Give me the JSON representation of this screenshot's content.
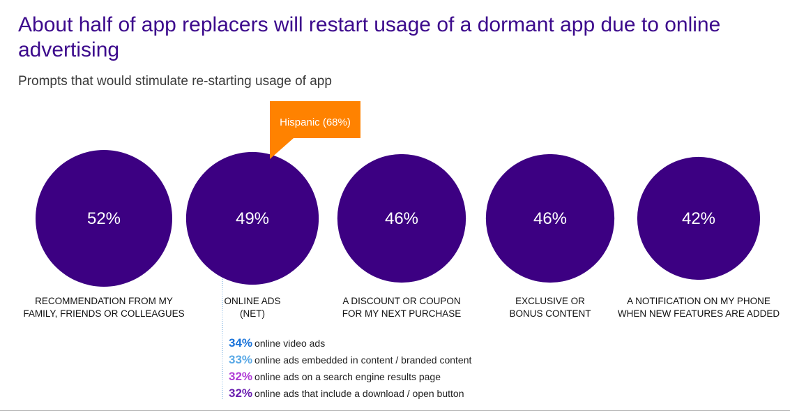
{
  "title": "About half of app replacers will restart usage of a dormant app due to online advertising",
  "subtitle": "Prompts that would stimulate re-starting usage of app",
  "colors": {
    "circle": "#3c0082",
    "callout": "#ff8200",
    "connector": "#6fa8dc"
  },
  "chart_data": {
    "type": "bubble",
    "title": "About half of app replacers will restart usage of a dormant app due to online advertising",
    "subtitle": "Prompts that would stimulate re-starting usage of app",
    "categories": [
      {
        "label_lines": [
          "RECOMMENDATION FROM MY",
          "FAMILY, FRIENDS OR COLLEAGUES"
        ],
        "value": 52,
        "value_label": "52%"
      },
      {
        "label_lines": [
          "ONLINE ADS",
          "(NET)"
        ],
        "value": 49,
        "value_label": "49%"
      },
      {
        "label_lines": [
          "A DISCOUNT OR COUPON",
          "FOR MY NEXT PURCHASE"
        ],
        "value": 46,
        "value_label": "46%"
      },
      {
        "label_lines": [
          "EXCLUSIVE OR",
          "BONUS CONTENT"
        ],
        "value": 46,
        "value_label": "46%"
      },
      {
        "label_lines": [
          "A NOTIFICATION ON MY PHONE",
          "WHEN NEW FEATURES ARE ADDED"
        ],
        "value": 42,
        "value_label": "42%"
      }
    ],
    "callout": {
      "category_index": 1,
      "text": "Hispanic (68%)",
      "value": 68
    },
    "breakdown": {
      "category_index": 1,
      "items": [
        {
          "value": 34,
          "pct_label": "34%",
          "text": "online video ads",
          "color": "#1a73d9"
        },
        {
          "value": 33,
          "pct_label": "33%",
          "text": "online ads embedded in content / branded content",
          "color": "#5aa9e6"
        },
        {
          "value": 32,
          "pct_label": "32%",
          "text": "online ads on a search engine results page",
          "color": "#b03cd6"
        },
        {
          "value": 32,
          "pct_label": "32%",
          "text": "online ads that include a download / open button",
          "color": "#6a1fb0"
        }
      ]
    }
  }
}
